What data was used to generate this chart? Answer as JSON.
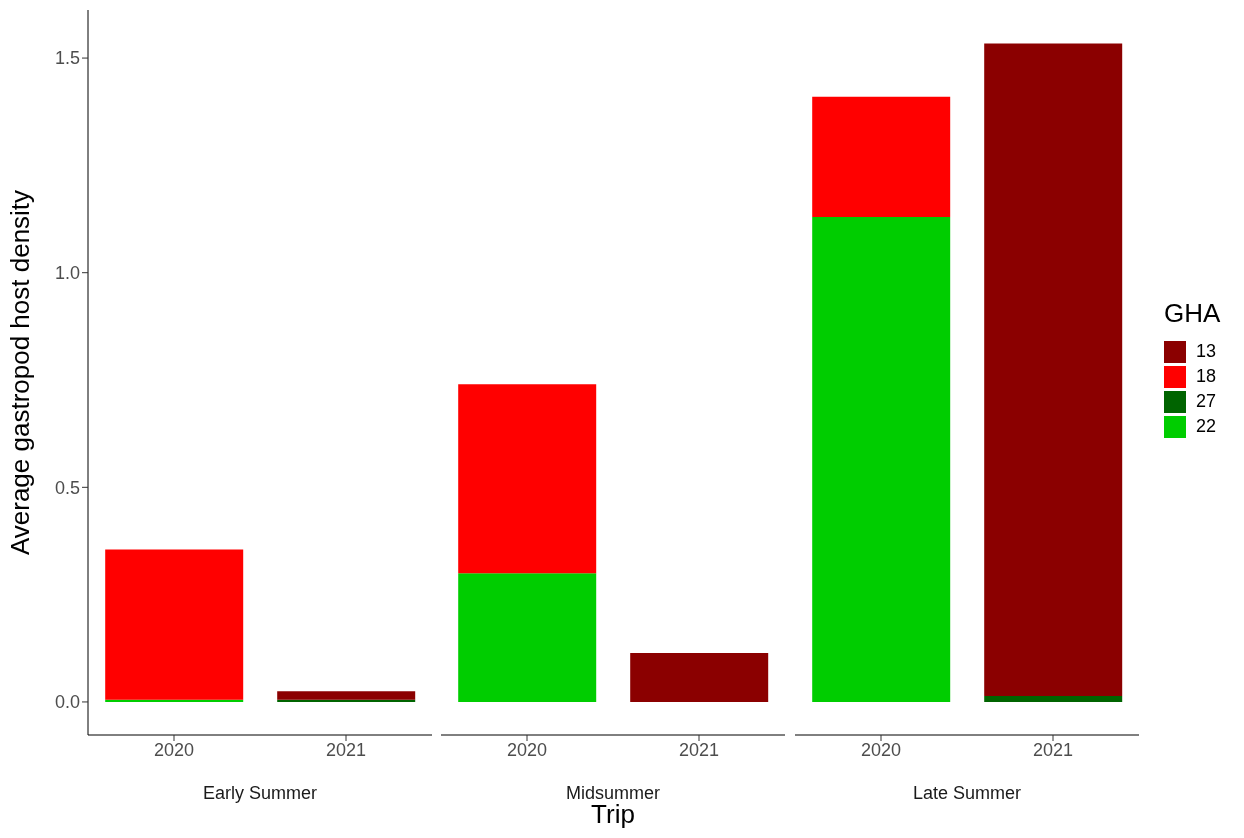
{
  "chart_data": [
    {
      "type": "bar",
      "ylabel": "Average gastropod host density",
      "xlabel": "Early Summer",
      "categories": [
        "2020",
        "2021"
      ],
      "stacked": true,
      "ylim": [
        -0.077,
        1.612
      ],
      "yticks": [
        {
          "value": 0,
          "label": "0.0"
        },
        0.5,
        {
          "value": 1,
          "label": "1.0"
        },
        1.5
      ],
      "grid": false,
      "legend": false,
      "series": [
        {
          "color": "#00cd00",
          "values": [
            0.005,
            0
          ]
        },
        {
          "color": "#006400",
          "values": [
            0,
            0.005
          ]
        },
        {
          "color": "#ff0000",
          "values": [
            0.35,
            0
          ]
        },
        {
          "color": "#8b0000",
          "values": [
            0,
            0.02
          ]
        }
      ]
    },
    {
      "type": "bar",
      "xlabel": "Midsummer",
      "annotations": [
        "Trip"
      ],
      "categories": [
        "2020",
        "2021"
      ],
      "stacked": true,
      "ylim": [
        -0.077,
        1.612
      ],
      "tick_labels": "x",
      "grid": false,
      "legend": false,
      "series": [
        {
          "color": "#00cd00",
          "values": [
            0.3,
            0
          ]
        },
        {
          "color": "#006400",
          "values": [
            0,
            0
          ]
        },
        {
          "color": "#ff0000",
          "values": [
            0.44,
            0
          ]
        },
        {
          "color": "#8b0000",
          "values": [
            0,
            0.114
          ]
        }
      ]
    },
    {
      "type": "bar",
      "xlabel": "Late Summer",
      "legend_title": "GHA",
      "categories": [
        "2020",
        "2021"
      ],
      "stacked": true,
      "ylim": [
        -0.077,
        1.612
      ],
      "tick_labels": "x",
      "grid": false,
      "legend": "right",
      "series": [
        {
          "name": "22",
          "color": "#00cd00",
          "values": [
            1.13,
            0
          ]
        },
        {
          "name": "27",
          "color": "#006400",
          "values": [
            0,
            0.014
          ]
        },
        {
          "name": "18",
          "color": "#ff0000",
          "values": [
            0.28,
            0
          ]
        },
        {
          "name": "13",
          "color": "#8b0000",
          "values": [
            0,
            1.52
          ]
        }
      ]
    }
  ]
}
